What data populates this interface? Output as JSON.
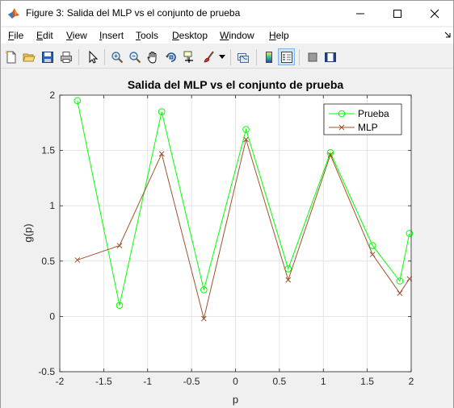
{
  "window": {
    "title": "Figure 3: Salida del MLP vs el conjunto de prueba"
  },
  "menu": [
    {
      "label": "File",
      "u": "F",
      "rest": "ile"
    },
    {
      "label": "Edit",
      "u": "E",
      "rest": "dit"
    },
    {
      "label": "View",
      "u": "V",
      "rest": "iew"
    },
    {
      "label": "Insert",
      "u": "I",
      "rest": "nsert"
    },
    {
      "label": "Tools",
      "u": "T",
      "rest": "ools"
    },
    {
      "label": "Desktop",
      "u": "D",
      "rest": "esktop"
    },
    {
      "label": "Window",
      "u": "W",
      "rest": "indow"
    },
    {
      "label": "Help",
      "u": "H",
      "rest": "elp"
    }
  ],
  "toolbar": {
    "icons": [
      "new-figure-icon",
      "open-file-icon",
      "save-icon",
      "print-icon",
      "edit-plot-arrow-icon",
      "zoom-in-icon",
      "zoom-out-icon",
      "pan-hand-icon",
      "rotate-3d-icon",
      "data-cursor-icon",
      "brush-icon",
      "brush-dropdown-icon",
      "link-plot-icon",
      "colorbar-icon",
      "legend-icon",
      "hide-plot-tools-icon",
      "show-plot-tools-icon"
    ]
  },
  "colors": {
    "prueba": "#00ff00",
    "mlp": "#a0522d",
    "grid": "#dfdfdf"
  },
  "chart_data": {
    "type": "line",
    "title": "Salida del MLP vs el conjunto de prueba",
    "xlabel": "p",
    "ylabel": "g(p)",
    "xlim": [
      -2,
      2
    ],
    "ylim": [
      -0.5,
      2
    ],
    "xticks": [
      "-2",
      "-1.5",
      "-1",
      "-0.5",
      "0",
      "0.5",
      "1",
      "1.5",
      "2"
    ],
    "yticks": [
      "-0.5",
      "0",
      "0.5",
      "1",
      "1.5",
      "2"
    ],
    "grid": true,
    "legend_position": "top-right",
    "series": [
      {
        "name": "Prueba",
        "marker": "circle",
        "x": [
          -1.8,
          -1.32,
          -0.84,
          -0.36,
          0.12,
          0.6,
          1.08,
          1.56,
          1.87,
          1.98
        ],
        "y": [
          1.95,
          0.1,
          1.85,
          0.24,
          1.69,
          0.43,
          1.48,
          0.64,
          0.32,
          0.75
        ]
      },
      {
        "name": "MLP",
        "marker": "x",
        "x": [
          -1.8,
          -1.32,
          -0.84,
          -0.36,
          0.12,
          0.6,
          1.08,
          1.56,
          1.87,
          1.98
        ],
        "y": [
          0.51,
          0.64,
          1.47,
          -0.02,
          1.6,
          0.33,
          1.46,
          0.56,
          0.21,
          0.34
        ]
      }
    ]
  }
}
